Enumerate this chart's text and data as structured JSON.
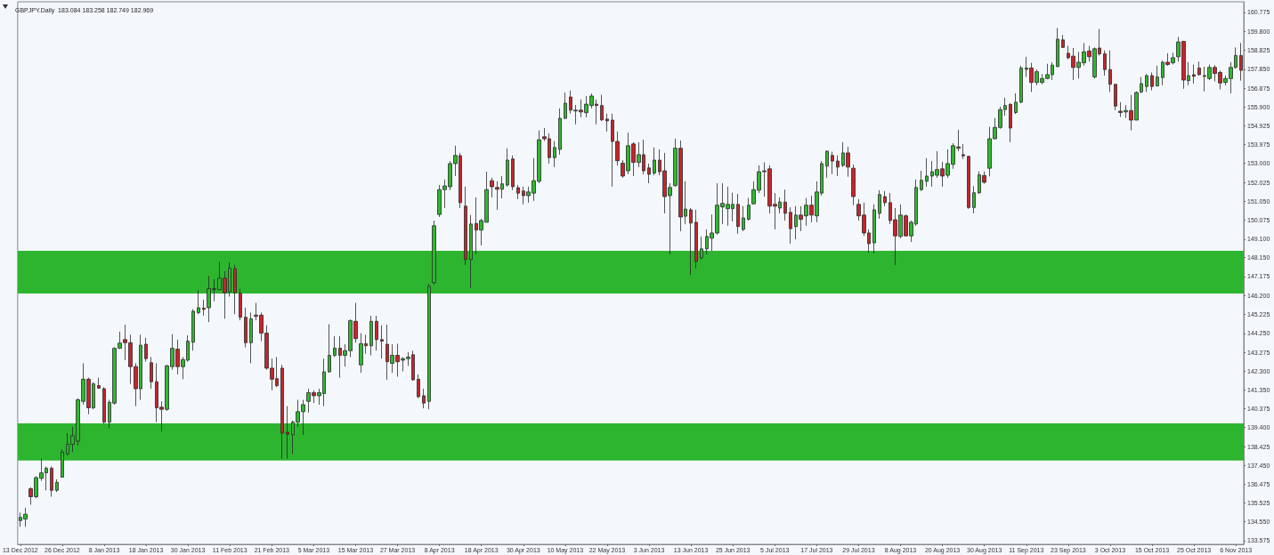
{
  "chart_data": {
    "type": "candlestick",
    "title": "GBPJPY.Daily  183.084 183.258 182.749 182.969",
    "categories": [
      "13 Dec 2012",
      null,
      null,
      null,
      null,
      null,
      null,
      null,
      "26 Dec 2012",
      null,
      null,
      null,
      null,
      null,
      null,
      null,
      "8 Jan 2013",
      null,
      null,
      null,
      null,
      null,
      null,
      null,
      "18 Jan 2013",
      null,
      null,
      null,
      null,
      null,
      null,
      null,
      "30 Jan 2013",
      null,
      null,
      null,
      null,
      null,
      null,
      null,
      "11 Feb 2013",
      null,
      null,
      null,
      null,
      null,
      null,
      null,
      "21 Feb 2013",
      null,
      null,
      null,
      null,
      null,
      null,
      null,
      "5 Mar 2013",
      null,
      null,
      null,
      null,
      null,
      null,
      null,
      "15 Mar 2013",
      null,
      null,
      null,
      null,
      null,
      null,
      null,
      "27 Mar 2013",
      null,
      null,
      null,
      null,
      null,
      null,
      null,
      "8 Apr 2013",
      null,
      null,
      null,
      null,
      null,
      null,
      null,
      "18 Apr 2013",
      null,
      null,
      null,
      null,
      null,
      null,
      null,
      "30 Apr 2013",
      null,
      null,
      null,
      null,
      null,
      null,
      null,
      "10 May 2013",
      null,
      null,
      null,
      null,
      null,
      null,
      null,
      "22 May 2013",
      null,
      null,
      null,
      null,
      null,
      null,
      null,
      "3 Jun 2013",
      null,
      null,
      null,
      null,
      null,
      null,
      null,
      "13 Jun 2013",
      null,
      null,
      null,
      null,
      null,
      null,
      null,
      "25 Jun 2013",
      null,
      null,
      null,
      null,
      null,
      null,
      null,
      "5 Jul 2013",
      null,
      null,
      null,
      null,
      null,
      null,
      null,
      "17 Jul 2013",
      null,
      null,
      null,
      null,
      null,
      null,
      null,
      "29 Jul 2013",
      null,
      null,
      null,
      null,
      null,
      null,
      null,
      "8 Aug 2013",
      null,
      null,
      null,
      null,
      null,
      null,
      null,
      "20 Aug 2013",
      null,
      null,
      null,
      null,
      null,
      null,
      null,
      "30 Aug 2013",
      null,
      null,
      null,
      null,
      null,
      null,
      null,
      "11 Sep 2013",
      null,
      null,
      null,
      null,
      null,
      null,
      null,
      "23 Sep 2013",
      null,
      null,
      null,
      null,
      null,
      null,
      null,
      "3 Oct 2013",
      null,
      null,
      null,
      null,
      null,
      null,
      null,
      "15 Oct 2013",
      null,
      null,
      null,
      null,
      null,
      null,
      null,
      "25 Oct 2013",
      null,
      null,
      null,
      null,
      null,
      null,
      null,
      "6 Nov 2013",
      null
    ],
    "ohlc": [
      [
        134.61,
        135.02,
        134.29,
        134.78
      ],
      [
        134.69,
        135.27,
        134.29,
        134.94
      ],
      [
        136.25,
        136.33,
        135.43,
        135.84
      ],
      [
        135.84,
        136.9,
        135.76,
        136.82
      ],
      [
        136.79,
        137.8,
        136.66,
        137.07
      ],
      [
        137.07,
        137.39,
        136.17,
        137.31
      ],
      [
        137.31,
        137.39,
        135.84,
        136.17
      ],
      [
        136.17,
        136.74,
        136.08,
        136.58
      ],
      [
        136.85,
        138.29,
        136.82,
        138.13
      ],
      [
        138.05,
        139.11,
        137.97,
        138.54
      ],
      [
        138.54,
        139.44,
        138.13,
        138.98
      ],
      [
        138.7,
        140.91,
        138.46,
        140.83
      ],
      [
        140.75,
        142.71,
        140.58,
        141.89
      ],
      [
        141.89,
        141.97,
        140.09,
        140.42
      ],
      [
        140.42,
        141.73,
        140.34,
        141.65
      ],
      [
        141.56,
        141.97,
        141.4,
        141.43
      ],
      [
        141.4,
        141.48,
        139.6,
        139.68
      ],
      [
        139.68,
        140.83,
        139.36,
        140.7
      ],
      [
        140.66,
        143.53,
        140.58,
        143.48
      ],
      [
        143.49,
        144.34,
        143.44,
        143.75
      ],
      [
        143.93,
        144.7,
        142.87,
        143.77
      ],
      [
        143.77,
        144.18,
        141.65,
        142.54
      ],
      [
        142.54,
        142.71,
        140.5,
        141.4
      ],
      [
        141.4,
        144.18,
        140.83,
        143.64
      ],
      [
        143.69,
        144.02,
        142.79,
        142.95
      ],
      [
        142.74,
        143.03,
        141.4,
        141.76
      ],
      [
        141.76,
        142.71,
        139.68,
        140.42
      ],
      [
        140.45,
        140.75,
        139.19,
        140.34
      ],
      [
        140.34,
        142.63,
        140.26,
        142.58
      ],
      [
        142.54,
        144.21,
        142.38,
        143.48
      ],
      [
        143.44,
        143.93,
        142.14,
        142.54
      ],
      [
        142.54,
        143.03,
        141.89,
        142.9
      ],
      [
        142.87,
        144.15,
        142.79,
        143.85
      ],
      [
        143.8,
        145.49,
        143.36,
        145.39
      ],
      [
        145.32,
        146.47,
        145.24,
        145.57
      ],
      [
        145.55,
        145.98,
        145.16,
        145.49
      ],
      [
        145.57,
        147.21,
        144.83,
        146.55
      ],
      [
        146.5,
        147.04,
        145.9,
        146.55
      ],
      [
        146.5,
        147.94,
        146.47,
        147.09
      ],
      [
        147.09,
        147.45,
        145.0,
        146.34
      ],
      [
        146.39,
        147.91,
        146.14,
        147.61
      ],
      [
        147.58,
        147.78,
        145.24,
        146.34
      ],
      [
        146.31,
        146.55,
        144.92,
        145.08
      ],
      [
        145.08,
        145.57,
        143.53,
        143.77
      ],
      [
        143.77,
        145.32,
        142.71,
        145.0
      ],
      [
        145.19,
        145.82,
        144.92,
        145.13
      ],
      [
        145.19,
        145.32,
        143.85,
        144.26
      ],
      [
        144.26,
        144.67,
        142.38,
        142.46
      ],
      [
        142.46,
        142.95,
        141.32,
        141.89
      ],
      [
        141.92,
        143.03,
        141.48,
        141.56
      ],
      [
        142.46,
        142.63,
        137.8,
        139.11
      ],
      [
        139.16,
        140.5,
        137.8,
        139.06
      ],
      [
        139.03,
        139.76,
        138.05,
        139.68
      ],
      [
        139.68,
        140.83,
        139.44,
        140.22
      ],
      [
        140.22,
        140.83,
        139.03,
        140.58
      ],
      [
        140.75,
        141.4,
        140.17,
        141.2
      ],
      [
        141.2,
        141.32,
        140.66,
        141.04
      ],
      [
        141.04,
        141.4,
        140.58,
        141.2
      ],
      [
        141.15,
        142.95,
        140.5,
        142.27
      ],
      [
        142.27,
        144.72,
        142.22,
        143.12
      ],
      [
        143.12,
        144.1,
        143.03,
        143.49
      ],
      [
        143.49,
        144.1,
        141.97,
        143.12
      ],
      [
        143.12,
        143.69,
        142.54,
        143.36
      ],
      [
        143.36,
        144.97,
        143.03,
        144.9
      ],
      [
        144.87,
        145.82,
        143.77,
        143.98
      ],
      [
        142.63,
        144.26,
        142.22,
        143.72
      ],
      [
        143.72,
        144.18,
        143.2,
        143.61
      ],
      [
        143.61,
        145.16,
        143.12,
        144.87
      ],
      [
        144.87,
        145.16,
        143.36,
        143.93
      ],
      [
        143.93,
        144.67,
        142.95,
        143.85
      ],
      [
        143.69,
        144.7,
        141.86,
        142.79
      ],
      [
        142.71,
        143.69,
        142.22,
        143.12
      ],
      [
        143.12,
        143.72,
        142.02,
        142.79
      ],
      [
        142.87,
        143.03,
        142.3,
        142.95
      ],
      [
        142.95,
        143.28,
        142.58,
        143.03
      ],
      [
        143.15,
        143.36,
        141.81,
        141.86
      ],
      [
        141.89,
        142.14,
        140.91,
        140.99
      ],
      [
        141.04,
        141.4,
        140.39,
        140.66
      ],
      [
        140.75,
        146.8,
        140.34,
        146.67
      ],
      [
        146.86,
        150.06,
        146.76,
        149.79
      ],
      [
        150.37,
        151.89,
        150.24,
        151.65
      ],
      [
        151.65,
        152.17,
        150.7,
        151.84
      ],
      [
        151.8,
        153.12,
        151.62,
        152.99
      ],
      [
        152.99,
        153.91,
        152.35,
        153.41
      ],
      [
        153.4,
        153.54,
        150.7,
        150.98
      ],
      [
        150.8,
        151.8,
        147.77,
        148.05
      ],
      [
        148.05,
        150.34,
        146.58,
        149.88
      ],
      [
        149.91,
        151.25,
        148.32,
        149.57
      ],
      [
        149.57,
        150.15,
        148.78,
        150.06
      ],
      [
        149.97,
        152.57,
        149.97,
        151.65
      ],
      [
        152.11,
        152.26,
        151.25,
        151.8
      ],
      [
        151.76,
        152.08,
        150.61,
        151.67
      ],
      [
        151.67,
        152.35,
        151.2,
        151.95
      ],
      [
        151.89,
        153.78,
        151.8,
        153.17
      ],
      [
        153.23,
        153.41,
        151.62,
        151.8
      ],
      [
        151.75,
        151.89,
        151.16,
        151.47
      ],
      [
        151.58,
        151.8,
        150.89,
        151.34
      ],
      [
        151.34,
        151.8,
        150.98,
        151.53
      ],
      [
        151.47,
        153.27,
        151.07,
        152.11
      ],
      [
        152.08,
        154.7,
        151.98,
        154.22
      ],
      [
        154.37,
        154.82,
        154.15,
        154.27
      ],
      [
        154.27,
        154.55,
        152.99,
        153.3
      ],
      [
        153.3,
        154.15,
        152.81,
        153.82
      ],
      [
        153.72,
        155.83,
        153.45,
        155.32
      ],
      [
        155.32,
        156.65,
        155.28,
        156.1
      ],
      [
        156.42,
        156.75,
        155.56,
        155.74
      ],
      [
        155.7,
        156.01,
        155.01,
        155.74
      ],
      [
        155.74,
        156.29,
        155.37,
        155.65
      ],
      [
        155.61,
        156.47,
        155.37,
        156.05
      ],
      [
        155.98,
        156.6,
        155.83,
        156.47
      ],
      [
        156.05,
        156.29,
        155.01,
        155.98
      ],
      [
        155.98,
        156.53,
        155.19,
        155.24
      ],
      [
        155.28,
        155.56,
        154.64,
        155.19
      ],
      [
        155.23,
        155.56,
        151.8,
        154.13
      ],
      [
        154.13,
        154.64,
        152.9,
        153.14
      ],
      [
        153.01,
        153.17,
        152.26,
        152.35
      ],
      [
        152.62,
        154.58,
        152.44,
        153.91
      ],
      [
        154.0,
        154.09,
        152.35,
        153.05
      ],
      [
        153.05,
        154.09,
        152.81,
        153.45
      ],
      [
        153.45,
        154.22,
        152.44,
        152.62
      ],
      [
        152.77,
        152.99,
        151.98,
        152.44
      ],
      [
        152.5,
        153.82,
        152.39,
        153.17
      ],
      [
        153.17,
        153.72,
        152.39,
        152.57
      ],
      [
        152.62,
        153.54,
        150.43,
        151.29
      ],
      [
        151.34,
        151.98,
        148.32,
        151.76
      ],
      [
        151.86,
        154.27,
        151.8,
        153.78
      ],
      [
        153.78,
        154.18,
        149.51,
        150.24
      ],
      [
        150.28,
        152.08,
        149.88,
        150.65
      ],
      [
        150.61,
        150.7,
        147.26,
        149.93
      ],
      [
        149.97,
        150.61,
        147.59,
        147.95
      ],
      [
        148.14,
        149.24,
        148.05,
        148.6
      ],
      [
        148.6,
        149.6,
        148.32,
        149.24
      ],
      [
        149.15,
        150.37,
        148.5,
        149.42
      ],
      [
        149.42,
        151.98,
        149.33,
        150.85
      ],
      [
        150.76,
        151.98,
        149.88,
        150.94
      ],
      [
        150.67,
        151.8,
        149.79,
        150.89
      ],
      [
        150.67,
        151.49,
        150.01,
        150.89
      ],
      [
        150.89,
        151.43,
        149.38,
        149.75
      ],
      [
        149.6,
        150.8,
        149.51,
        150.19
      ],
      [
        150.12,
        151.22,
        150.06,
        150.85
      ],
      [
        150.92,
        152.08,
        150.89,
        151.65
      ],
      [
        151.62,
        152.9,
        151.47,
        152.57
      ],
      [
        152.57,
        153.05,
        151.29,
        152.62
      ],
      [
        152.72,
        152.9,
        150.43,
        150.8
      ],
      [
        150.89,
        151.47,
        149.6,
        150.8
      ],
      [
        150.7,
        151.25,
        150.43,
        151.01
      ],
      [
        151.01,
        151.65,
        150.06,
        150.43
      ],
      [
        150.48,
        150.74,
        148.87,
        149.64
      ],
      [
        149.75,
        150.8,
        149.09,
        150.34
      ],
      [
        150.34,
        150.8,
        149.51,
        150.12
      ],
      [
        150.3,
        151.22,
        149.79,
        150.85
      ],
      [
        150.85,
        151.34,
        149.97,
        150.34
      ],
      [
        150.3,
        152.08,
        149.97,
        151.53
      ],
      [
        151.47,
        153.12,
        151.34,
        152.99
      ],
      [
        152.86,
        153.67,
        152.26,
        153.63
      ],
      [
        153.41,
        153.6,
        152.44,
        153.12
      ],
      [
        153.12,
        153.41,
        152.35,
        152.81
      ],
      [
        152.9,
        154.09,
        152.81,
        153.54
      ],
      [
        153.54,
        153.85,
        152.31,
        152.81
      ],
      [
        152.75,
        152.94,
        150.85,
        151.29
      ],
      [
        150.89,
        151.16,
        150.06,
        150.3
      ],
      [
        150.34,
        150.98,
        149.27,
        149.42
      ],
      [
        149.42,
        149.6,
        148.41,
        148.87
      ],
      [
        148.91,
        150.89,
        148.36,
        150.61
      ],
      [
        150.43,
        151.62,
        150.15,
        151.4
      ],
      [
        151.29,
        151.58,
        150.8,
        150.98
      ],
      [
        150.98,
        151.47,
        149.88,
        150.06
      ],
      [
        150.1,
        150.7,
        147.77,
        149.27
      ],
      [
        149.24,
        150.89,
        149.15,
        150.34
      ],
      [
        150.3,
        150.37,
        149.24,
        149.27
      ],
      [
        149.27,
        150.06,
        148.96,
        149.97
      ],
      [
        149.88,
        152.17,
        149.79,
        151.76
      ],
      [
        151.65,
        152.62,
        151.58,
        152.13
      ],
      [
        152.08,
        153.27,
        151.8,
        152.35
      ],
      [
        152.35,
        153.12,
        151.8,
        152.57
      ],
      [
        152.39,
        153.63,
        152.26,
        152.68
      ],
      [
        152.72,
        153.08,
        151.8,
        152.35
      ],
      [
        152.39,
        153.72,
        152.26,
        152.99
      ],
      [
        152.95,
        154.04,
        152.72,
        153.91
      ],
      [
        153.85,
        154.73,
        153.63,
        153.78
      ],
      [
        153.45,
        154.0,
        153.23,
        153.39
      ],
      [
        153.36,
        153.4,
        150.66,
        150.73
      ],
      [
        150.73,
        151.83,
        150.43,
        151.49
      ],
      [
        151.49,
        152.59,
        151.42,
        152.41
      ],
      [
        152.38,
        152.59,
        151.95,
        152.03
      ],
      [
        152.75,
        154.88,
        152.33,
        154.27
      ],
      [
        154.27,
        155.34,
        154.24,
        154.85
      ],
      [
        154.85,
        155.92,
        154.78,
        155.77
      ],
      [
        155.77,
        156.38,
        155.46,
        155.98
      ],
      [
        156.04,
        156.1,
        154.09,
        154.82
      ],
      [
        155.62,
        156.61,
        155.54,
        156.15
      ],
      [
        156.15,
        158.03,
        156.1,
        157.91
      ],
      [
        157.84,
        158.49,
        157.45,
        157.91
      ],
      [
        157.91,
        158.18,
        156.68,
        157.17
      ],
      [
        157.17,
        157.83,
        157.02,
        157.72
      ],
      [
        157.17,
        157.6,
        157.07,
        157.37
      ],
      [
        157.37,
        158.13,
        157.33,
        157.57
      ],
      [
        157.57,
        158.21,
        157.29,
        158.06
      ],
      [
        157.98,
        159.97,
        157.98,
        159.4
      ],
      [
        159.36,
        159.61,
        158.94,
        158.97
      ],
      [
        158.67,
        159.05,
        158.36,
        158.44
      ],
      [
        158.52,
        158.94,
        157.29,
        157.94
      ],
      [
        157.94,
        158.74,
        157.37,
        158.21
      ],
      [
        158.18,
        159.2,
        158.03,
        158.74
      ],
      [
        158.79,
        159.05,
        158.24,
        158.49
      ],
      [
        157.45,
        158.97,
        157.37,
        158.9
      ],
      [
        158.94,
        159.92,
        158.55,
        158.64
      ],
      [
        158.64,
        158.82,
        157.52,
        157.83
      ],
      [
        157.83,
        158.82,
        156.68,
        157.07
      ],
      [
        157.07,
        157.07,
        155.74,
        155.95
      ],
      [
        155.69,
        156.15,
        155.39,
        155.62
      ],
      [
        155.65,
        156.0,
        155.34,
        155.72
      ],
      [
        155.72,
        156.53,
        154.7,
        155.23
      ],
      [
        155.23,
        156.71,
        155.23,
        156.65
      ],
      [
        156.68,
        157.45,
        156.61,
        157.11
      ],
      [
        156.96,
        157.6,
        156.68,
        157.52
      ],
      [
        157.52,
        157.68,
        156.76,
        156.96
      ],
      [
        156.99,
        158.03,
        156.96,
        157.45
      ],
      [
        157.42,
        158.29,
        157.02,
        158.21
      ],
      [
        158.21,
        158.67,
        158.03,
        158.09
      ],
      [
        158.18,
        158.7,
        158.09,
        158.44
      ],
      [
        158.49,
        159.51,
        158.24,
        159.25
      ],
      [
        159.28,
        159.31,
        156.84,
        157.29
      ],
      [
        157.26,
        158.21,
        157.02,
        157.52
      ],
      [
        157.57,
        158.09,
        157.11,
        157.48
      ],
      [
        157.91,
        158.24,
        157.52,
        157.57
      ],
      [
        157.52,
        157.98,
        156.71,
        157.48
      ],
      [
        157.37,
        158.09,
        157.29,
        157.94
      ],
      [
        157.94,
        158.06,
        157.22,
        157.63
      ],
      [
        157.68,
        157.78,
        156.81,
        157.14
      ],
      [
        157.17,
        157.52,
        157.02,
        157.37
      ],
      [
        157.37,
        158.21,
        156.61,
        157.94
      ],
      [
        157.94,
        158.97,
        157.88,
        158.55
      ],
      [
        158.55,
        159.2,
        157.26,
        157.79
      ]
    ],
    "colors": [
      "#2eb82e",
      "#2eb82e",
      "#c8232c",
      "#2eb82e",
      "#2eb82e",
      "#2eb82e",
      "#c8232c",
      "#2eb82e",
      "#2eb82e",
      "#2eb82e",
      "#2eb82e",
      "#2eb82e",
      "#2eb82e",
      "#c8232c",
      "#2eb82e",
      "#c8232c",
      "#c8232c",
      "#2eb82e",
      "#2eb82e",
      "#2eb82e",
      "#c8232c",
      "#c8232c",
      "#c8232c",
      "#2eb82e",
      "#c8232c",
      "#c8232c",
      "#c8232c",
      "#c8232c",
      "#2eb82e",
      "#2eb82e",
      "#c8232c",
      "#2eb82e",
      "#2eb82e",
      "#2eb82e",
      "#2eb82e",
      "#c8232c",
      "#2eb82e",
      "#2eb82e",
      "#2eb82e",
      "#c8232c",
      "#2eb82e",
      "#c8232c",
      "#c8232c",
      "#c8232c",
      "#2eb82e",
      "#c8232c",
      "#c8232c",
      "#c8232c",
      "#c8232c",
      "#c8232c",
      "#c8232c",
      "#c8232c",
      "#2eb82e",
      "#2eb82e",
      "#2eb82e",
      "#2eb82e",
      "#c8232c",
      "#2eb82e",
      "#2eb82e",
      "#2eb82e",
      "#2eb82e",
      "#c8232c",
      "#2eb82e",
      "#2eb82e",
      "#c8232c",
      "#2eb82e",
      "#c8232c",
      "#2eb82e",
      "#c8232c",
      "#c8232c",
      "#c8232c",
      "#2eb82e",
      "#c8232c",
      "#2eb82e",
      "#2eb82e",
      "#c8232c",
      "#c8232c",
      "#c8232c",
      "#2eb82e",
      "#2eb82e",
      "#2eb82e",
      "#2eb82e",
      "#2eb82e",
      "#2eb82e",
      "#c8232c",
      "#c8232c",
      "#2eb82e",
      "#c8232c",
      "#2eb82e",
      "#2eb82e",
      "#c8232c",
      "#c8232c",
      "#2eb82e",
      "#2eb82e",
      "#c8232c",
      "#c8232c",
      "#c8232c",
      "#2eb82e",
      "#2eb82e",
      "#2eb82e",
      "#c8232c",
      "#c8232c",
      "#2eb82e",
      "#2eb82e",
      "#2eb82e",
      "#c8232c",
      "#2eb82e",
      "#c8232c",
      "#2eb82e",
      "#2eb82e",
      "#c8232c",
      "#c8232c",
      "#c8232c",
      "#c8232c",
      "#c8232c",
      "#c8232c",
      "#2eb82e",
      "#c8232c",
      "#2eb82e",
      "#c8232c",
      "#c8232c",
      "#2eb82e",
      "#c8232c",
      "#c8232c",
      "#2eb82e",
      "#2eb82e",
      "#c8232c",
      "#2eb82e",
      "#c8232c",
      "#c8232c",
      "#2eb82e",
      "#2eb82e",
      "#2eb82e",
      "#2eb82e",
      "#2eb82e",
      "#2eb82e",
      "#2eb82e",
      "#c8232c",
      "#2eb82e",
      "#2eb82e",
      "#2eb82e",
      "#2eb82e",
      "#2eb82e",
      "#c8232c",
      "#c8232c",
      "#2eb82e",
      "#c8232c",
      "#c8232c",
      "#2eb82e",
      "#c8232c",
      "#2eb82e",
      "#c8232c",
      "#2eb82e",
      "#2eb82e",
      "#2eb82e",
      "#c8232c",
      "#c8232c",
      "#2eb82e",
      "#c8232c",
      "#c8232c",
      "#c8232c",
      "#c8232c",
      "#c8232c",
      "#2eb82e",
      "#2eb82e",
      "#c8232c",
      "#c8232c",
      "#c8232c",
      "#2eb82e",
      "#c8232c",
      "#2eb82e",
      "#2eb82e",
      "#2eb82e",
      "#2eb82e",
      "#2eb82e",
      "#2eb82e",
      "#c8232c",
      "#2eb82e",
      "#2eb82e",
      "#c8232c",
      "#c8232c",
      "#c8232c",
      "#2eb82e",
      "#2eb82e",
      "#c8232c",
      "#2eb82e",
      "#2eb82e",
      "#2eb82e",
      "#2eb82e",
      "#c8232c",
      "#2eb82e",
      "#2eb82e",
      "#2eb82e",
      "#c8232c",
      "#2eb82e",
      "#2eb82e",
      "#2eb82e",
      "#2eb82e",
      "#2eb82e",
      "#c8232c",
      "#c8232c",
      "#c8232c",
      "#2eb82e",
      "#2eb82e",
      "#c8232c",
      "#2eb82e",
      "#c8232c",
      "#c8232c",
      "#c8232c",
      "#c8232c",
      "#c8232c",
      "#2eb82e",
      "#c8232c",
      "#2eb82e",
      "#2eb82e",
      "#2eb82e",
      "#c8232c",
      "#2eb82e",
      "#2eb82e",
      "#c8232c",
      "#2eb82e",
      "#2eb82e",
      "#c8232c",
      "#2eb82e",
      "#c8232c",
      "#c8232c",
      "#c8232c",
      "#2eb82e",
      "#c8232c",
      "#c8232c",
      "#2eb82e",
      "#2eb82e",
      "#2eb82e",
      "#c8232c"
    ],
    "ylim": [
      133.39,
      161.32
    ],
    "yticks": [
      {
        "value": 160.775,
        "label": "160.775"
      },
      {
        "value": 159.8,
        "label": "159.800"
      },
      {
        "value": 158.825,
        "label": "158.825"
      },
      {
        "value": 157.85,
        "label": "157.850"
      },
      {
        "value": 156.875,
        "label": "156.875"
      },
      {
        "value": 155.9,
        "label": "155.900"
      },
      {
        "value": 154.925,
        "label": "154.925"
      },
      {
        "value": 153.975,
        "label": "153.975"
      },
      {
        "value": 153,
        "label": "153.000"
      },
      {
        "value": 152.025,
        "label": "152.025"
      },
      {
        "value": 151.05,
        "label": "151.050"
      },
      {
        "value": 150.075,
        "label": "150.075"
      },
      {
        "value": 149.1,
        "label": "149.100"
      },
      {
        "value": 148.15,
        "label": "148.150"
      },
      {
        "value": 147.175,
        "label": "147.175"
      },
      {
        "value": 146.2,
        "label": "146.200"
      },
      {
        "value": 145.225,
        "label": "145.225"
      },
      {
        "value": 144.25,
        "label": "144.250"
      },
      {
        "value": 143.275,
        "label": "143.275"
      },
      {
        "value": 142.3,
        "label": "142.300"
      },
      {
        "value": 141.35,
        "label": "141.350"
      },
      {
        "value": 140.375,
        "label": "140.375"
      },
      {
        "value": 139.4,
        "label": "139.400"
      },
      {
        "value": 138.425,
        "label": "138.425"
      },
      {
        "value": 137.45,
        "label": "137.450"
      },
      {
        "value": 136.475,
        "label": "136.475"
      },
      {
        "value": 135.525,
        "label": "135.525"
      },
      {
        "value": 134.55,
        "label": "134.550"
      },
      {
        "value": 133.575,
        "label": "133.575"
      }
    ],
    "bands": [
      {
        "axis": "y",
        "from": 137.7,
        "to": 139.62,
        "color": "#2db52f"
      },
      {
        "axis": "y",
        "from": 146.3,
        "to": 148.5,
        "color": "#2db52f"
      }
    ]
  }
}
